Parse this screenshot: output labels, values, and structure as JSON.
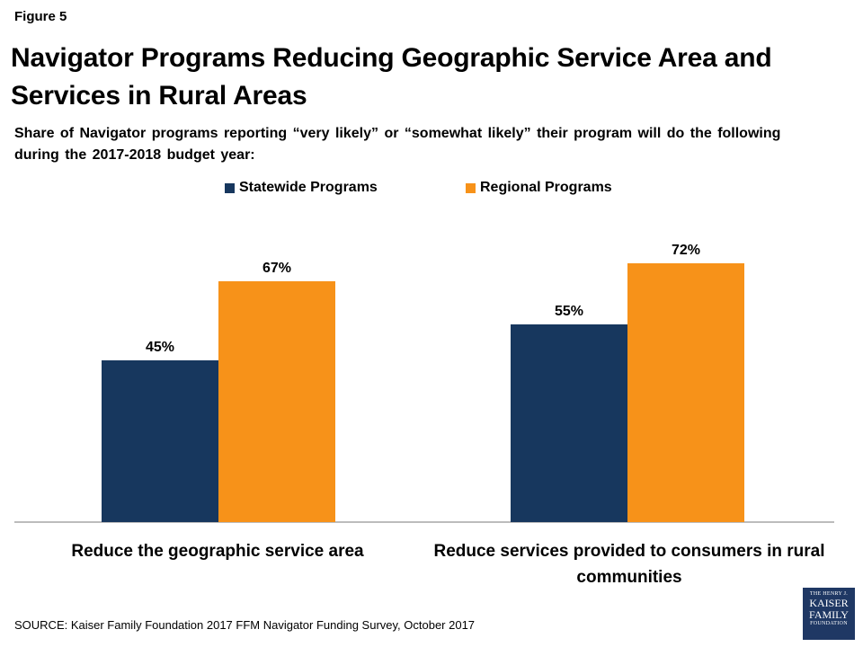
{
  "figure_label": "Figure 5",
  "logo": {
    "line1": "THE HENRY J.",
    "line2": "KAISER",
    "line3": "FAMILY",
    "line4": "FOUNDATION"
  },
  "source": "SOURCE: Kaiser Family Foundation 2017 FFM Navigator Funding Survey, October 2017",
  "colors": {
    "statewide": "#17375e",
    "regional": "#f79219",
    "axis": "#a6a6a6"
  },
  "chart_data": {
    "type": "bar",
    "title": "Navigator Programs Reducing Geographic Service Area and Services in Rural Areas",
    "subtitle": "Share of Navigator programs reporting “very likely” or “somewhat likely” their program will do the following during the 2017-2018 budget year:",
    "categories": [
      "Reduce the geographic service area",
      "Reduce services provided to consumers in rural communities"
    ],
    "series": [
      {
        "name": "Statewide Programs",
        "values": [
          45,
          55
        ],
        "labels": [
          "45%",
          "55%"
        ]
      },
      {
        "name": "Regional Programs",
        "values": [
          67,
          72
        ],
        "labels": [
          "67%",
          "72%"
        ]
      }
    ],
    "ylim": [
      0,
      100
    ],
    "grid": false,
    "legend_position": "top"
  }
}
